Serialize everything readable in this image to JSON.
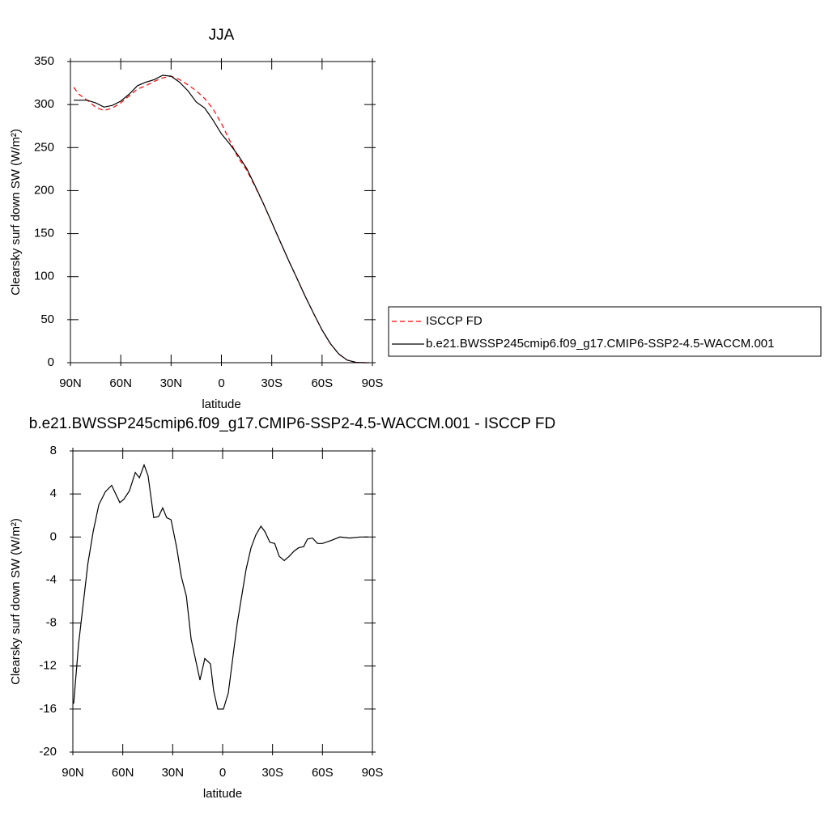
{
  "chart_data": [
    {
      "type": "line",
      "title": "JJA",
      "xlabel": "latitude",
      "ylabel": "Clearsky surf down SW (W/m²)",
      "x": [
        88,
        85,
        80,
        75,
        70,
        65,
        60,
        55,
        50,
        45,
        40,
        35,
        30,
        25,
        20,
        15,
        10,
        5,
        0,
        -5,
        -10,
        -15,
        -20,
        -25,
        -30,
        -35,
        -40,
        -45,
        -50,
        -55,
        -60,
        -65,
        -70,
        -75,
        -80,
        -85,
        -88
      ],
      "series": [
        {
          "name": "ISCCP FD",
          "color": "#ff0000",
          "line_style": "dashed",
          "values": [
            320,
            312,
            305,
            297,
            293,
            296,
            302,
            310,
            318,
            322,
            327,
            331,
            333,
            329,
            323,
            316,
            307,
            295,
            278,
            258,
            238,
            224,
            205,
            185,
            163,
            141,
            119,
            98,
            77,
            57,
            38,
            22,
            10,
            3,
            0.5,
            0,
            0
          ]
        },
        {
          "name": "b.e21.BWSSP245cmip6.f09_g17.CMIP6-SSP2-4.5-WACCM.001",
          "color": "#000000",
          "line_style": "solid",
          "values": [
            305,
            305,
            305,
            302,
            297,
            299,
            304,
            312,
            322,
            326,
            329,
            334,
            333,
            326,
            316,
            303,
            296,
            282,
            266,
            254,
            241,
            226,
            206,
            185,
            163,
            141,
            119,
            98,
            77,
            57,
            38,
            22,
            10,
            3,
            0.5,
            0,
            0
          ]
        }
      ],
      "xlim": [
        90,
        -90
      ],
      "xticks": [
        {
          "value": 90,
          "label": "90N"
        },
        {
          "value": 60,
          "label": "60N"
        },
        {
          "value": 30,
          "label": "30N"
        },
        0,
        {
          "value": -30,
          "label": "30S"
        },
        {
          "value": -60,
          "label": "60S"
        },
        {
          "value": -90,
          "label": "90S"
        }
      ],
      "ylim": [
        0,
        350
      ],
      "yticks": [
        0,
        50,
        100,
        150,
        200,
        250,
        300,
        350
      ]
    },
    {
      "type": "line",
      "title": "b.e21.BWSSP245cmip6.f09_g17.CMIP6-SSP2-4.5-WACCM.001 - ISCCP FD",
      "xlabel": "latitude",
      "ylabel": "Clearsky surf down SW (W/m²)",
      "x": [
        89.5,
        86.6,
        81,
        77.8,
        74.4,
        70.5,
        66.7,
        61.8,
        59.4,
        56,
        52.5,
        50,
        47.2,
        44.8,
        41.4,
        38.5,
        36,
        33.6,
        31,
        27.6,
        24.8,
        21.8,
        18.9,
        13.6,
        10.7,
        7.3,
        5.4,
        2.9,
        -0.5,
        -3.4,
        -8.8,
        -14.1,
        -17.1,
        -20,
        -23,
        -25.4,
        -28.4,
        -31.3,
        -34,
        -37,
        -40,
        -43,
        -45.7,
        -48.7,
        -51,
        -54,
        -57,
        -60,
        -65.6,
        -70.5,
        -76.3,
        -82.7,
        -87.5
      ],
      "series": [
        {
          "color": "#000000",
          "line_style": "solid",
          "values": [
            -15.5,
            -10,
            -2.5,
            0.5,
            3,
            4.2,
            4.8,
            3.2,
            3.5,
            4.3,
            6,
            5.5,
            6.7,
            5.7,
            1.8,
            1.9,
            2.7,
            1.8,
            1.6,
            -1,
            -3.7,
            -5.5,
            -9.5,
            -13.3,
            -11.3,
            -11.8,
            -14.3,
            -16,
            -16,
            -14.5,
            -8,
            -3,
            -1,
            0.2,
            1,
            0.5,
            -0.5,
            -0.6,
            -1.8,
            -2.2,
            -1.8,
            -1.3,
            -1,
            -0.9,
            -0.2,
            -0.1,
            -0.6,
            -0.6,
            -0.3,
            0,
            -0.1,
            0,
            0
          ]
        }
      ],
      "xlim": [
        90,
        -90
      ],
      "xticks": [
        {
          "value": 90,
          "label": "90N"
        },
        {
          "value": 60,
          "label": "60N"
        },
        {
          "value": 30,
          "label": "30N"
        },
        0,
        {
          "value": -30,
          "label": "30S"
        },
        {
          "value": -60,
          "label": "60S"
        },
        {
          "value": -90,
          "label": "90S"
        }
      ],
      "ylim": [
        -20,
        8
      ],
      "yticks": [
        8,
        4,
        0,
        -4,
        -8,
        -12,
        -16,
        -20
      ]
    }
  ]
}
